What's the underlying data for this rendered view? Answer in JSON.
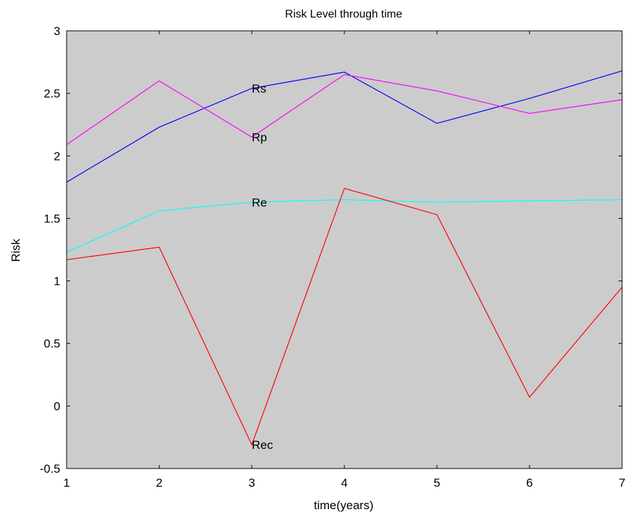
{
  "chart_data": {
    "type": "line",
    "title": "Risk Level through time",
    "xlabel": "time(years)",
    "ylabel": "Risk",
    "xlim": [
      1,
      7
    ],
    "ylim": [
      -0.5,
      3
    ],
    "xticks": [
      1,
      2,
      3,
      4,
      5,
      6,
      7
    ],
    "yticks": [
      -0.5,
      0,
      0.5,
      1,
      1.5,
      2,
      2.5,
      3
    ],
    "ytick_labels": [
      "-0.5",
      "0",
      "0.5",
      "1",
      "1.5",
      "2",
      "2.5",
      "3"
    ],
    "grid": false,
    "background_color": "#cccccc",
    "x": [
      1,
      2,
      3,
      4,
      5,
      6,
      7
    ],
    "series": [
      {
        "name": "Rs",
        "color": "#0000ff",
        "values": [
          1.79,
          2.23,
          2.54,
          2.67,
          2.26,
          2.46,
          2.68
        ]
      },
      {
        "name": "Rp",
        "color": "#ff00ff",
        "values": [
          2.09,
          2.6,
          2.15,
          2.65,
          2.52,
          2.34,
          2.45
        ]
      },
      {
        "name": "Re",
        "color": "#00ffff",
        "values": [
          1.23,
          1.56,
          1.63,
          1.65,
          1.63,
          1.64,
          1.65
        ]
      },
      {
        "name": "Rec",
        "color": "#ff0000",
        "values": [
          1.17,
          1.27,
          -0.31,
          1.74,
          1.53,
          0.07,
          0.95
        ]
      }
    ],
    "annotations": [
      {
        "text": "Rs",
        "x": 3,
        "y": 2.54
      },
      {
        "text": "Rp",
        "x": 3,
        "y": 2.15
      },
      {
        "text": "Re",
        "x": 3,
        "y": 1.63
      },
      {
        "text": "Rec",
        "x": 3,
        "y": -0.31
      }
    ]
  }
}
